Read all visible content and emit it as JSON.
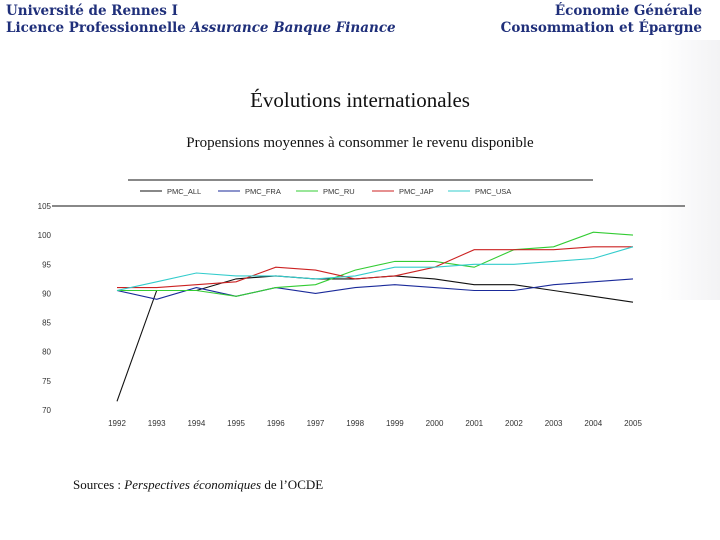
{
  "header": {
    "left_line1": "Université de Rennes I",
    "left_line2_prefix": "Licence Professionnelle ",
    "left_line2_italic": "Assurance Banque Finance",
    "right_line1": "Économie Générale",
    "right_line2": "Consommation et Épargne"
  },
  "title": "Évolutions internationales",
  "subtitle": "Propensions moyennes à consommer le revenu disponible",
  "source": {
    "prefix": "Sources : ",
    "italic": "Perspectives économiques",
    "suffix": " de l’OCDE"
  },
  "chart_data": {
    "type": "line",
    "categories": [
      "1992",
      "1993",
      "1994",
      "1995",
      "1996",
      "1997",
      "1998",
      "1999",
      "2000",
      "2001",
      "2002",
      "2003",
      "2004",
      "2005"
    ],
    "yticks": [
      "105",
      "100",
      "95",
      "90",
      "85",
      "80",
      "75",
      "70"
    ],
    "ylim": [
      70,
      105
    ],
    "grid": false,
    "legend_position": "top",
    "series": [
      {
        "name": "PMC_ALL",
        "color": "#111111",
        "values": [
          71.5,
          90.5,
          90.5,
          92.5,
          93,
          92.5,
          92.5,
          93,
          92.5,
          91.5,
          91.5,
          90.5,
          89.5,
          88.5
        ]
      },
      {
        "name": "PMC_FRA",
        "color": "#1a2a9a",
        "values": [
          90.5,
          89,
          91,
          89.5,
          91,
          90,
          91,
          91.5,
          91,
          90.5,
          90.5,
          91.5,
          92,
          92.5
        ]
      },
      {
        "name": "PMC_RU",
        "color": "#33cc33",
        "values": [
          90.5,
          90.5,
          90.5,
          89.5,
          91,
          91.5,
          94,
          95.5,
          95.5,
          94.5,
          97.5,
          98,
          100.5,
          100
        ]
      },
      {
        "name": "PMC_JAP",
        "color": "#cc2222",
        "values": [
          91,
          91,
          91.5,
          92,
          94.5,
          94,
          92.5,
          93,
          94.5,
          97.5,
          97.5,
          97.5,
          98,
          98
        ]
      },
      {
        "name": "PMC_USA",
        "color": "#33cccc",
        "values": [
          90.5,
          92,
          93.5,
          93,
          93,
          92.5,
          93,
          94.5,
          94.5,
          95,
          95,
          95.5,
          96,
          98
        ]
      }
    ]
  }
}
